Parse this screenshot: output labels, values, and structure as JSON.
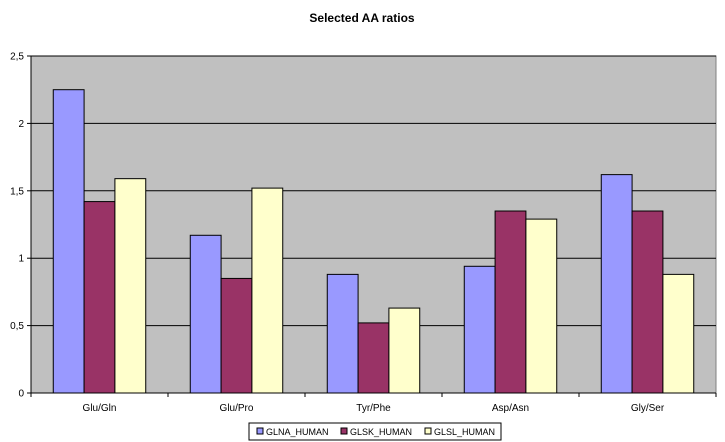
{
  "chart_data": {
    "type": "bar",
    "title": "Selected AA ratios",
    "xlabel": "",
    "ylabel": "",
    "categories": [
      "Glu/Gln",
      "Glu/Pro",
      "Tyr/Phe",
      "Asp/Asn",
      "Gly/Ser"
    ],
    "series": [
      {
        "name": "GLNA_HUMAN",
        "color": "#9999ff",
        "values": [
          2.25,
          1.17,
          0.88,
          0.94,
          1.62
        ]
      },
      {
        "name": "GLSK_HUMAN",
        "color": "#993366",
        "values": [
          1.42,
          0.85,
          0.52,
          1.35,
          1.35
        ]
      },
      {
        "name": "GLSL_HUMAN",
        "color": "#ffffcc",
        "values": [
          1.59,
          1.52,
          0.63,
          1.29,
          0.88
        ]
      }
    ],
    "ylim": [
      0,
      2.5
    ],
    "yticks": [
      "0",
      "0,5",
      "1",
      "1,5",
      "2",
      "2,5"
    ],
    "grid": true,
    "plot_background": "#c0c0c0",
    "legend_position": "bottom-center"
  }
}
